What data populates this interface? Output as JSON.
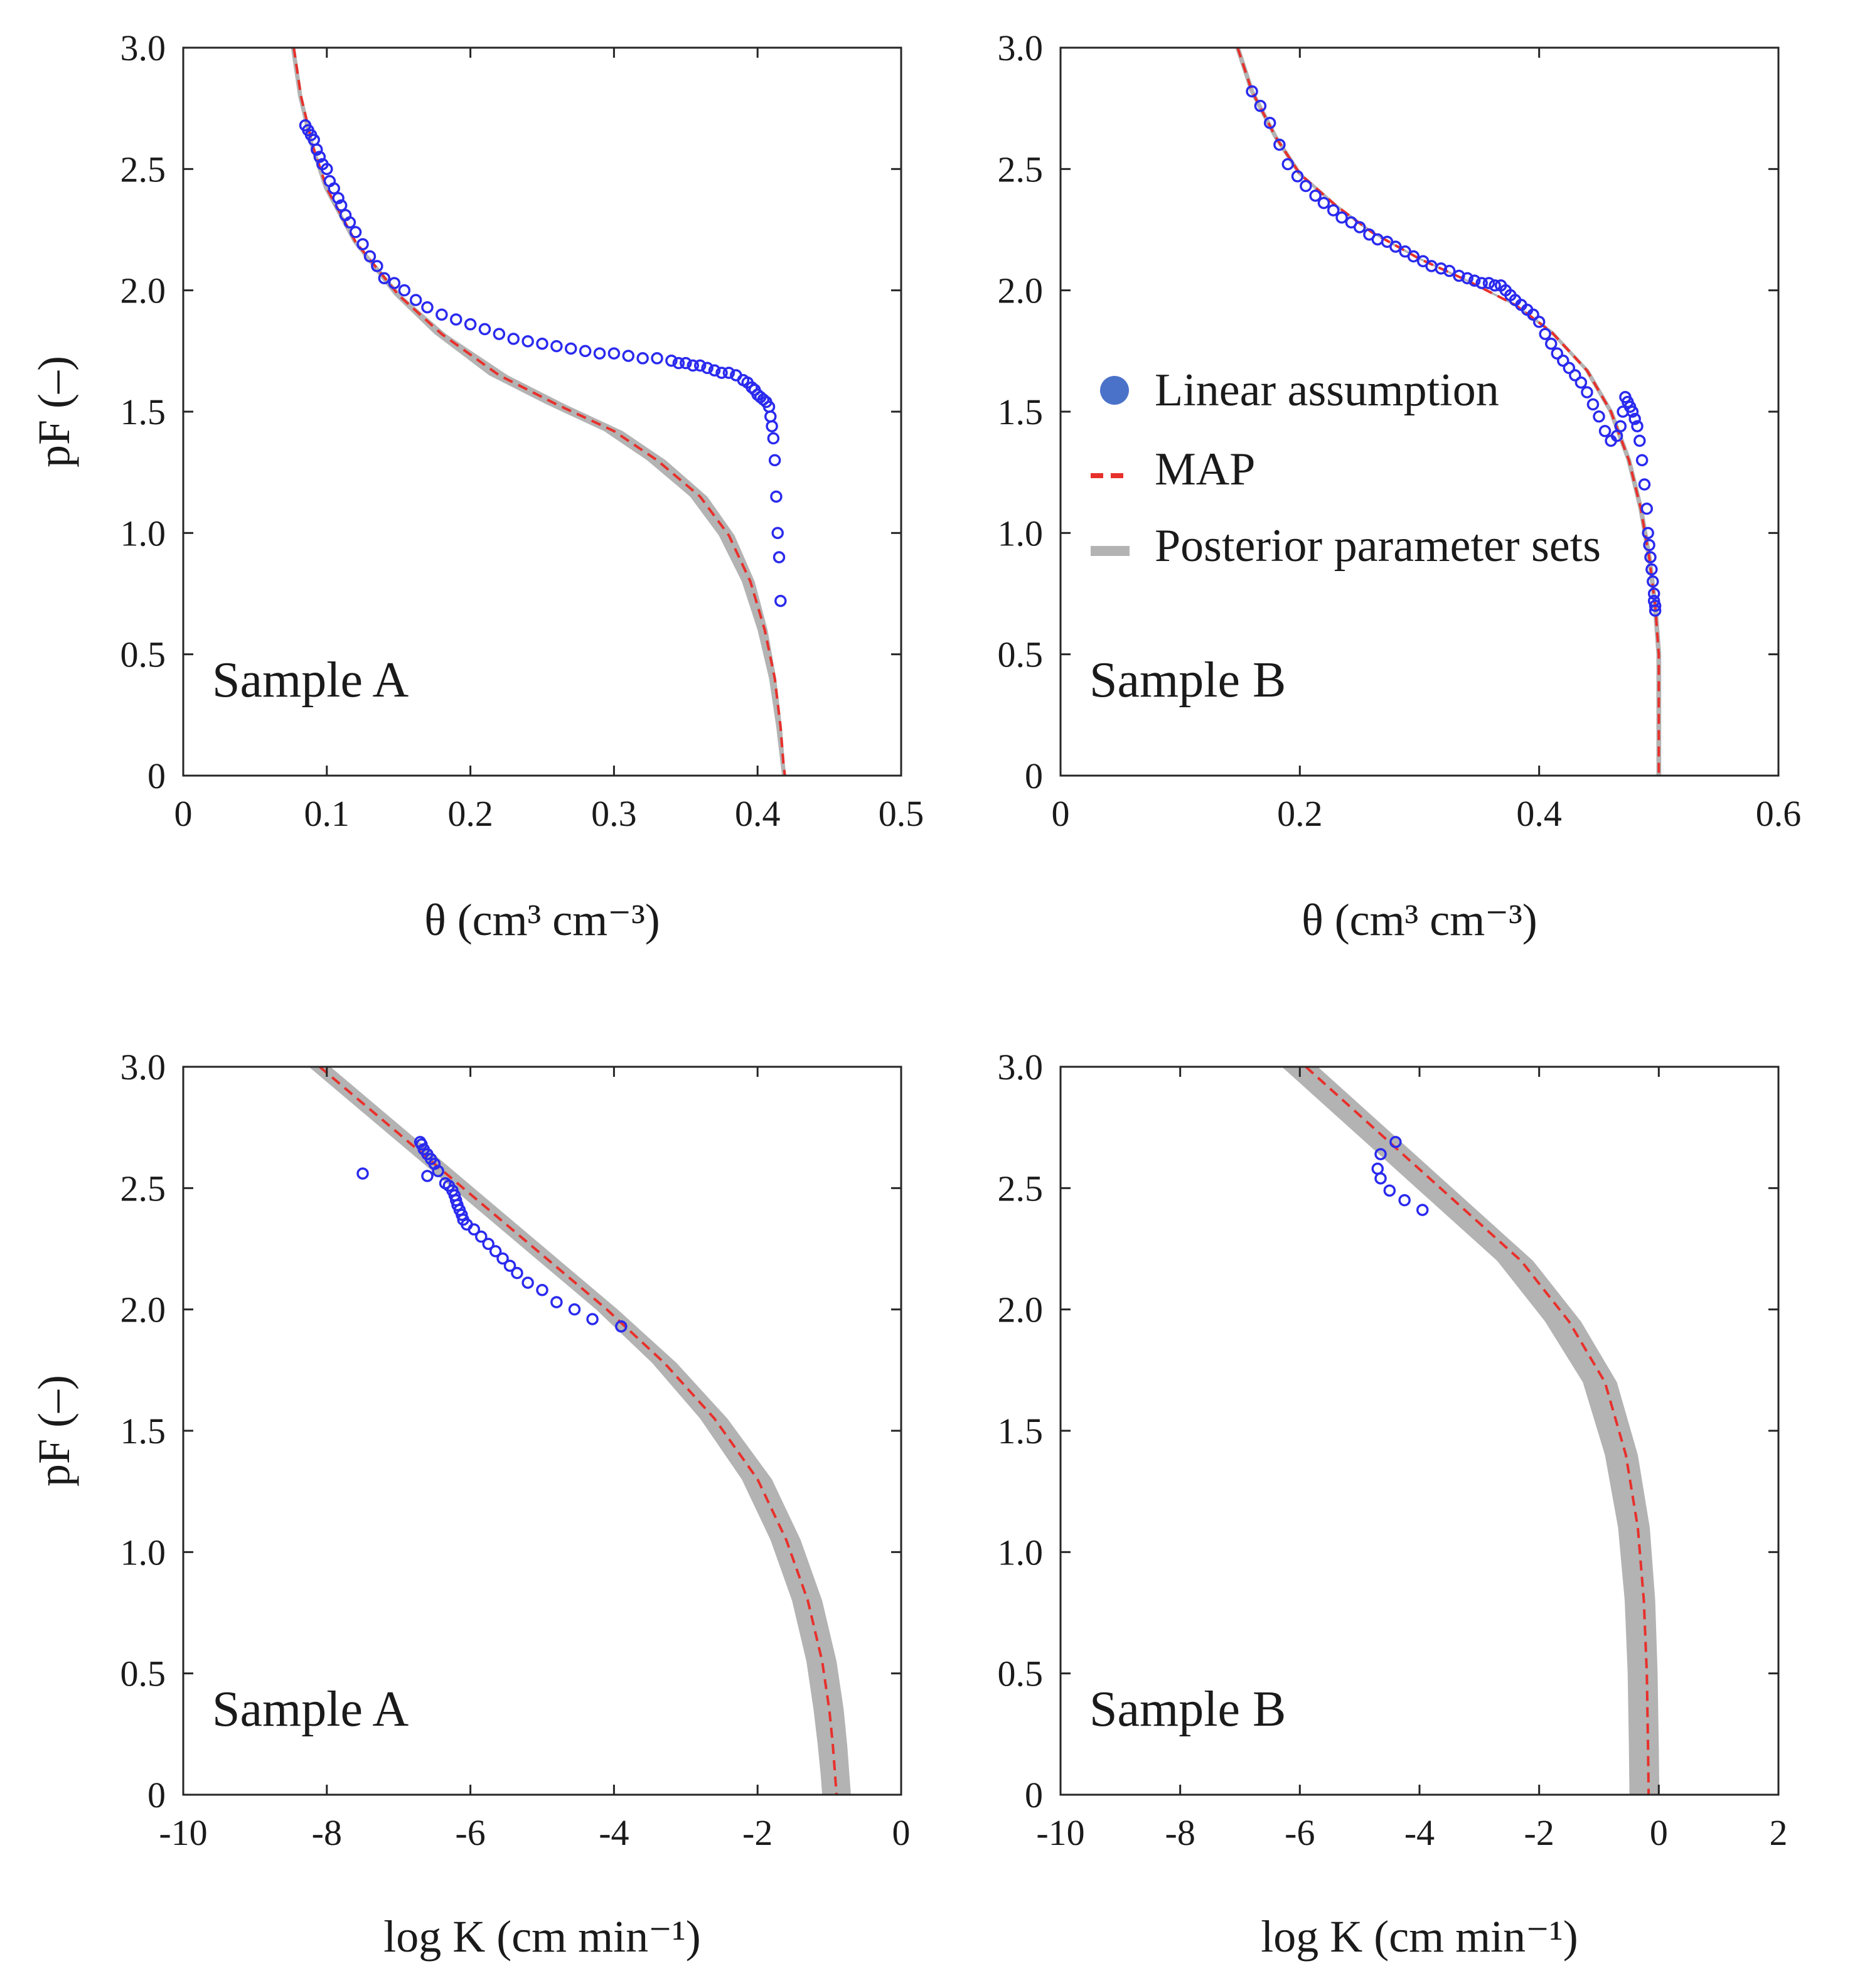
{
  "legend": {
    "items": [
      {
        "label": "Linear assumption",
        "kind": "marker",
        "color": "#4a72c9"
      },
      {
        "label": "MAP",
        "kind": "dashed",
        "color": "#e8302b"
      },
      {
        "label": "Posterior parameter sets",
        "kind": "band",
        "color": "#b3b3b3"
      }
    ]
  },
  "chart_data": [
    {
      "id": "A-theta",
      "type": "line",
      "panel_label": "Sample A",
      "xlabel": "θ (cm³ cm⁻³)",
      "ylabel": "pF (–)",
      "xlim": [
        0,
        0.5
      ],
      "ylim": [
        0,
        3.0
      ],
      "xticks": [
        0,
        0.1,
        0.2,
        0.3,
        0.4,
        0.5
      ],
      "xtick_labels": [
        "0",
        "0.1",
        "0.2",
        "0.3",
        "0.4",
        "0.5"
      ],
      "yticks": [
        0,
        0.5,
        1.0,
        1.5,
        2.0,
        2.5,
        3.0
      ],
      "ytick_labels": [
        "0",
        "0.5",
        "1.0",
        "1.5",
        "2.0",
        "2.5",
        "3.0"
      ],
      "series": [
        {
          "name": "MAP",
          "style": "dashed",
          "color": "#e8302b",
          "x": [
            0.077,
            0.082,
            0.09,
            0.1,
            0.12,
            0.15,
            0.18,
            0.22,
            0.26,
            0.3,
            0.33,
            0.36,
            0.38,
            0.395,
            0.405,
            0.412,
            0.416,
            0.418,
            0.419
          ],
          "y": [
            3.0,
            2.8,
            2.6,
            2.42,
            2.2,
            1.98,
            1.82,
            1.65,
            1.53,
            1.42,
            1.3,
            1.15,
            0.99,
            0.8,
            0.6,
            0.4,
            0.2,
            0.05,
            0.0
          ]
        },
        {
          "name": "Posterior lower",
          "style": "band-edge",
          "color": "#b3b3b3",
          "x": [
            0.075,
            0.08,
            0.088,
            0.098,
            0.118,
            0.147,
            0.175,
            0.213,
            0.253,
            0.293,
            0.323,
            0.353,
            0.373,
            0.389,
            0.4,
            0.408,
            0.413,
            0.416,
            0.417
          ],
          "y": [
            3.0,
            2.8,
            2.6,
            2.42,
            2.2,
            1.98,
            1.82,
            1.65,
            1.53,
            1.42,
            1.3,
            1.15,
            0.99,
            0.8,
            0.6,
            0.4,
            0.2,
            0.05,
            0.0
          ]
        },
        {
          "name": "Posterior upper",
          "style": "band-edge",
          "color": "#b3b3b3",
          "x": [
            0.078,
            0.083,
            0.091,
            0.101,
            0.121,
            0.152,
            0.183,
            0.226,
            0.266,
            0.306,
            0.336,
            0.365,
            0.384,
            0.398,
            0.407,
            0.413,
            0.417,
            0.419,
            0.42
          ],
          "y": [
            3.0,
            2.8,
            2.6,
            2.42,
            2.2,
            1.98,
            1.82,
            1.65,
            1.53,
            1.42,
            1.3,
            1.15,
            0.99,
            0.8,
            0.6,
            0.4,
            0.2,
            0.05,
            0.0
          ]
        },
        {
          "name": "Linear assumption",
          "style": "markers",
          "color": "#2a2aee",
          "x": [
            0.085,
            0.087,
            0.089,
            0.091,
            0.093,
            0.095,
            0.097,
            0.1,
            0.102,
            0.105,
            0.108,
            0.11,
            0.113,
            0.116,
            0.12,
            0.125,
            0.13,
            0.135,
            0.14,
            0.147,
            0.154,
            0.162,
            0.17,
            0.18,
            0.19,
            0.2,
            0.21,
            0.22,
            0.23,
            0.24,
            0.25,
            0.26,
            0.27,
            0.28,
            0.29,
            0.3,
            0.31,
            0.32,
            0.33,
            0.34,
            0.345,
            0.35,
            0.355,
            0.36,
            0.365,
            0.37,
            0.375,
            0.38,
            0.385,
            0.39,
            0.393,
            0.396,
            0.398,
            0.4,
            0.402,
            0.404,
            0.406,
            0.408,
            0.409,
            0.41,
            0.411,
            0.412,
            0.413,
            0.414,
            0.415,
            0.416
          ],
          "y": [
            2.68,
            2.66,
            2.64,
            2.62,
            2.58,
            2.55,
            2.52,
            2.5,
            2.45,
            2.42,
            2.38,
            2.35,
            2.31,
            2.28,
            2.24,
            2.19,
            2.14,
            2.1,
            2.05,
            2.03,
            2.0,
            1.96,
            1.93,
            1.9,
            1.88,
            1.86,
            1.84,
            1.82,
            1.8,
            1.79,
            1.78,
            1.77,
            1.76,
            1.75,
            1.74,
            1.74,
            1.73,
            1.72,
            1.72,
            1.71,
            1.7,
            1.7,
            1.69,
            1.69,
            1.68,
            1.67,
            1.66,
            1.66,
            1.65,
            1.63,
            1.62,
            1.6,
            1.59,
            1.57,
            1.56,
            1.55,
            1.54,
            1.52,
            1.48,
            1.44,
            1.39,
            1.3,
            1.15,
            1.0,
            0.9,
            0.72
          ]
        }
      ]
    },
    {
      "id": "B-theta",
      "type": "line",
      "panel_label": "Sample B",
      "xlabel": "θ (cm³ cm⁻³)",
      "ylabel": "",
      "xlim": [
        0,
        0.6
      ],
      "ylim": [
        0,
        3.0
      ],
      "xticks": [
        0,
        0.2,
        0.4,
        0.6
      ],
      "xtick_labels": [
        "0",
        "0.2",
        "0.4",
        "0.6"
      ],
      "yticks": [
        0,
        0.5,
        1.0,
        1.5,
        2.0,
        2.5,
        3.0
      ],
      "ytick_labels": [
        "0",
        "0.5",
        "1.0",
        "1.5",
        "2.0",
        "2.5",
        "3.0"
      ],
      "series": [
        {
          "name": "MAP",
          "style": "dashed",
          "color": "#e8302b",
          "x": [
            0.148,
            0.16,
            0.18,
            0.2,
            0.23,
            0.26,
            0.3,
            0.34,
            0.38,
            0.41,
            0.44,
            0.46,
            0.475,
            0.485,
            0.492,
            0.497,
            0.5,
            0.5
          ],
          "y": [
            3.0,
            2.82,
            2.63,
            2.48,
            2.35,
            2.24,
            2.13,
            2.04,
            1.94,
            1.83,
            1.67,
            1.5,
            1.3,
            1.1,
            0.9,
            0.7,
            0.5,
            0.0
          ]
        },
        {
          "name": "Posterior lower",
          "style": "band-edge",
          "color": "#b3b3b3",
          "x": [
            0.146,
            0.158,
            0.178,
            0.198,
            0.228,
            0.258,
            0.298,
            0.338,
            0.378,
            0.408,
            0.438,
            0.458,
            0.473,
            0.483,
            0.49,
            0.495,
            0.498,
            0.498
          ],
          "y": [
            3.0,
            2.82,
            2.63,
            2.48,
            2.35,
            2.24,
            2.13,
            2.04,
            1.94,
            1.83,
            1.67,
            1.5,
            1.3,
            1.1,
            0.9,
            0.7,
            0.5,
            0.0
          ]
        },
        {
          "name": "Posterior upper",
          "style": "band-edge",
          "color": "#b3b3b3",
          "x": [
            0.15,
            0.162,
            0.182,
            0.202,
            0.232,
            0.262,
            0.302,
            0.342,
            0.382,
            0.412,
            0.442,
            0.462,
            0.477,
            0.487,
            0.494,
            0.499,
            0.502,
            0.502
          ],
          "y": [
            3.0,
            2.82,
            2.63,
            2.48,
            2.35,
            2.24,
            2.13,
            2.04,
            1.94,
            1.83,
            1.67,
            1.5,
            1.3,
            1.1,
            0.9,
            0.7,
            0.5,
            0.0
          ]
        },
        {
          "name": "Linear assumption",
          "style": "markers",
          "color": "#2a2aee",
          "x": [
            0.16,
            0.167,
            0.175,
            0.183,
            0.19,
            0.198,
            0.205,
            0.213,
            0.22,
            0.228,
            0.235,
            0.243,
            0.25,
            0.258,
            0.265,
            0.273,
            0.28,
            0.288,
            0.295,
            0.303,
            0.31,
            0.318,
            0.325,
            0.333,
            0.34,
            0.346,
            0.352,
            0.358,
            0.363,
            0.368,
            0.372,
            0.376,
            0.38,
            0.385,
            0.39,
            0.395,
            0.4,
            0.405,
            0.41,
            0.415,
            0.42,
            0.425,
            0.43,
            0.435,
            0.44,
            0.445,
            0.45,
            0.455,
            0.46,
            0.465,
            0.468,
            0.47,
            0.472,
            0.474,
            0.476,
            0.478,
            0.48,
            0.482,
            0.484,
            0.486,
            0.488,
            0.49,
            0.491,
            0.492,
            0.493,
            0.494,
            0.495,
            0.496,
            0.496,
            0.497,
            0.497
          ],
          "y": [
            2.82,
            2.76,
            2.69,
            2.6,
            2.52,
            2.47,
            2.43,
            2.39,
            2.36,
            2.33,
            2.3,
            2.28,
            2.26,
            2.23,
            2.21,
            2.2,
            2.18,
            2.16,
            2.14,
            2.12,
            2.1,
            2.09,
            2.08,
            2.06,
            2.05,
            2.04,
            2.03,
            2.03,
            2.02,
            2.02,
            2.0,
            1.98,
            1.96,
            1.94,
            1.92,
            1.9,
            1.87,
            1.82,
            1.78,
            1.74,
            1.71,
            1.68,
            1.65,
            1.62,
            1.58,
            1.53,
            1.48,
            1.42,
            1.38,
            1.4,
            1.44,
            1.5,
            1.56,
            1.54,
            1.52,
            1.5,
            1.47,
            1.44,
            1.38,
            1.3,
            1.2,
            1.1,
            1.0,
            0.95,
            0.9,
            0.85,
            0.8,
            0.75,
            0.72,
            0.7,
            0.68
          ]
        }
      ]
    },
    {
      "id": "A-logK",
      "type": "line",
      "panel_label": "Sample A",
      "xlabel": "log K (cm min⁻¹)",
      "ylabel": "pF (–)",
      "xlim": [
        -10,
        0
      ],
      "ylim": [
        0,
        3.0
      ],
      "xticks": [
        -10,
        -8,
        -6,
        -4,
        -2,
        0
      ],
      "xtick_labels": [
        "-10",
        "-8",
        "-6",
        "-4",
        "-2",
        "0"
      ],
      "yticks": [
        0,
        0.5,
        1.0,
        1.5,
        2.0,
        2.5,
        3.0
      ],
      "ytick_labels": [
        "0",
        "0.5",
        "1.0",
        "1.5",
        "2.0",
        "2.5",
        "3.0"
      ],
      "series": [
        {
          "name": "MAP",
          "style": "dashed",
          "color": "#e8302b",
          "x": [
            -8.1,
            -7.3,
            -6.5,
            -5.7,
            -4.9,
            -4.1,
            -3.3,
            -2.6,
            -2.0,
            -1.6,
            -1.3,
            -1.1,
            -1.0,
            -0.95,
            -0.92,
            -0.9
          ],
          "y": [
            3.0,
            2.8,
            2.6,
            2.4,
            2.2,
            2.0,
            1.78,
            1.55,
            1.3,
            1.05,
            0.8,
            0.55,
            0.35,
            0.2,
            0.08,
            0.0
          ]
        },
        {
          "name": "Posterior lower",
          "style": "band-edge",
          "color": "#b3b3b3",
          "x": [
            -8.25,
            -7.45,
            -6.65,
            -5.85,
            -5.05,
            -4.25,
            -3.47,
            -2.8,
            -2.22,
            -1.82,
            -1.52,
            -1.32,
            -1.22,
            -1.16,
            -1.12,
            -1.1
          ],
          "y": [
            3.0,
            2.8,
            2.6,
            2.4,
            2.2,
            2.0,
            1.78,
            1.55,
            1.3,
            1.05,
            0.8,
            0.55,
            0.35,
            0.2,
            0.08,
            0.0
          ]
        },
        {
          "name": "Posterior upper",
          "style": "band-edge",
          "color": "#b3b3b3",
          "x": [
            -7.95,
            -7.15,
            -6.35,
            -5.55,
            -4.75,
            -3.95,
            -3.13,
            -2.42,
            -1.8,
            -1.4,
            -1.1,
            -0.9,
            -0.8,
            -0.75,
            -0.72,
            -0.7
          ],
          "y": [
            3.0,
            2.8,
            2.6,
            2.4,
            2.2,
            2.0,
            1.78,
            1.55,
            1.3,
            1.05,
            0.8,
            0.55,
            0.35,
            0.2,
            0.08,
            0.0
          ]
        },
        {
          "name": "Linear assumption",
          "style": "markers",
          "color": "#2a2aee",
          "x": [
            -7.5,
            -6.7,
            -6.68,
            -6.65,
            -6.6,
            -6.55,
            -6.5,
            -6.45,
            -6.6,
            -6.35,
            -6.3,
            -6.25,
            -6.22,
            -6.2,
            -6.18,
            -6.15,
            -6.12,
            -6.1,
            -6.05,
            -5.95,
            -5.85,
            -5.75,
            -5.65,
            -5.55,
            -5.45,
            -5.35,
            -5.2,
            -5.0,
            -4.8,
            -4.55,
            -4.3,
            -3.9
          ],
          "y": [
            2.56,
            2.69,
            2.68,
            2.66,
            2.64,
            2.62,
            2.6,
            2.57,
            2.55,
            2.52,
            2.51,
            2.49,
            2.47,
            2.45,
            2.43,
            2.41,
            2.39,
            2.37,
            2.35,
            2.33,
            2.3,
            2.27,
            2.24,
            2.21,
            2.18,
            2.15,
            2.11,
            2.08,
            2.03,
            2.0,
            1.96,
            1.93
          ]
        }
      ]
    },
    {
      "id": "B-logK",
      "type": "line",
      "panel_label": "Sample B",
      "xlabel": "log K (cm min⁻¹)",
      "ylabel": "",
      "xlim": [
        -10,
        2
      ],
      "ylim": [
        0,
        3.0
      ],
      "xticks": [
        -10,
        -8,
        -6,
        -4,
        -2,
        0,
        2
      ],
      "xtick_labels": [
        "-10",
        "-8",
        "-6",
        "-4",
        "-2",
        "0",
        "2"
      ],
      "yticks": [
        0,
        0.5,
        1.0,
        1.5,
        2.0,
        2.5,
        3.0
      ],
      "ytick_labels": [
        "0",
        "0.5",
        "1.0",
        "1.5",
        "2.0",
        "2.5",
        "3.0"
      ],
      "series": [
        {
          "name": "MAP",
          "style": "dashed",
          "color": "#e8302b",
          "x": [
            -5.9,
            -5.0,
            -4.1,
            -3.2,
            -2.3,
            -1.5,
            -0.9,
            -0.55,
            -0.35,
            -0.25,
            -0.2,
            -0.18,
            -0.17
          ],
          "y": [
            3.0,
            2.8,
            2.6,
            2.4,
            2.2,
            1.95,
            1.7,
            1.4,
            1.1,
            0.8,
            0.5,
            0.2,
            0.0
          ]
        },
        {
          "name": "Posterior lower",
          "style": "band-edge",
          "color": "#b3b3b3",
          "x": [
            -6.3,
            -5.4,
            -4.5,
            -3.6,
            -2.7,
            -1.9,
            -1.27,
            -0.9,
            -0.68,
            -0.57,
            -0.52,
            -0.5,
            -0.49
          ],
          "y": [
            3.0,
            2.8,
            2.6,
            2.4,
            2.2,
            1.95,
            1.7,
            1.4,
            1.1,
            0.8,
            0.5,
            0.2,
            0.0
          ]
        },
        {
          "name": "Posterior upper",
          "style": "band-edge",
          "color": "#b3b3b3",
          "x": [
            -5.7,
            -4.8,
            -3.9,
            -3.0,
            -2.1,
            -1.3,
            -0.7,
            -0.35,
            -0.15,
            -0.06,
            -0.02,
            0.0,
            0.01
          ],
          "y": [
            3.0,
            2.8,
            2.6,
            2.4,
            2.2,
            1.95,
            1.7,
            1.4,
            1.1,
            0.8,
            0.5,
            0.2,
            0.0
          ]
        },
        {
          "name": "Linear assumption",
          "style": "markers",
          "color": "#2a2aee",
          "x": [
            -4.4,
            -4.65,
            -4.7,
            -4.65,
            -4.5,
            -4.25,
            -3.95
          ],
          "y": [
            2.69,
            2.64,
            2.58,
            2.54,
            2.49,
            2.45,
            2.41
          ]
        }
      ]
    }
  ]
}
